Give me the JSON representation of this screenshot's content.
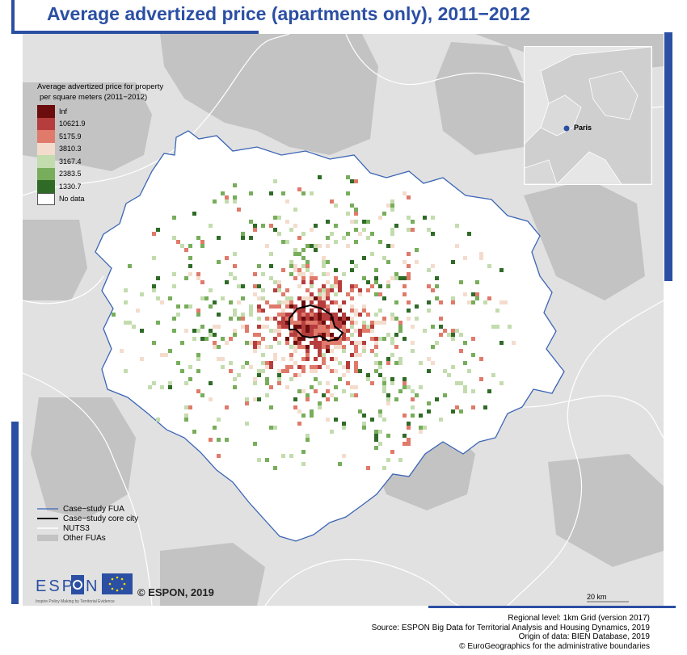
{
  "title": "Average advertized price (apartments only), 2011−2012",
  "legend": {
    "title_line1": "Average advertized price for property",
    "title_line2": "per square meters (2011−2012)",
    "classes": [
      {
        "label": "Inf",
        "color": "#6b0d0d"
      },
      {
        "label": "10621.9",
        "color": "#b63d3d"
      },
      {
        "label": "5175.9",
        "color": "#e07a6b"
      },
      {
        "label": "3810.3",
        "color": "#f4dccd"
      },
      {
        "label": "3167.4",
        "color": "#c3dcae"
      },
      {
        "label": "2383.5",
        "color": "#77ad5b"
      },
      {
        "label": "1330.7",
        "color": "#2f6b27"
      },
      {
        "label": "No data",
        "color": "#ffffff"
      }
    ]
  },
  "legend2": {
    "items": [
      {
        "label": "Case−study FUA",
        "color": "#3b65b6"
      },
      {
        "label": "Case−study core city",
        "color": "#000000"
      },
      {
        "label": "NUTS3",
        "color": "#ffffff"
      },
      {
        "label": "Other FUAs",
        "color": "#c3c3c3"
      }
    ]
  },
  "inset": {
    "city_label": "Paris"
  },
  "logo": {
    "text_left": "ESP",
    "text_right": "N",
    "tagline": "Inspire Policy Making by Territorial Evidence"
  },
  "copyright": "© ESPON, 2019",
  "scale_label": "20 km",
  "footer": {
    "line1": "Regional level: 1km Grid (version 2017)",
    "line2": "Source: ESPON Big Data for Territorial Analysis and Housing Dynamics, 2019",
    "line3": "Origin of data: BIEN Database, 2019",
    "line4": "© EuroGeographics for the administrative boundaries"
  },
  "colors": {
    "accent": "#2b4fa3",
    "map_bg": "#e1e1e1",
    "other_fua": "#c3c3c3",
    "fua_outline": "#3b65b6"
  }
}
